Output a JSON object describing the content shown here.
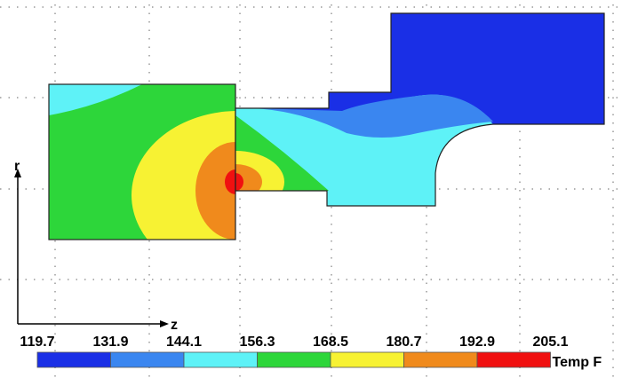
{
  "axes": {
    "vertical": "r",
    "horizontal": "z"
  },
  "legend": {
    "ticks": [
      119.7,
      131.9,
      144.1,
      156.3,
      168.5,
      180.7,
      192.9,
      205.1
    ],
    "colors": [
      "#1a2fe6",
      "#3a86f0",
      "#5ef2f7",
      "#2dd63a",
      "#f7f233",
      "#f08a1c",
      "#f01010"
    ],
    "title": "Temp F"
  }
}
